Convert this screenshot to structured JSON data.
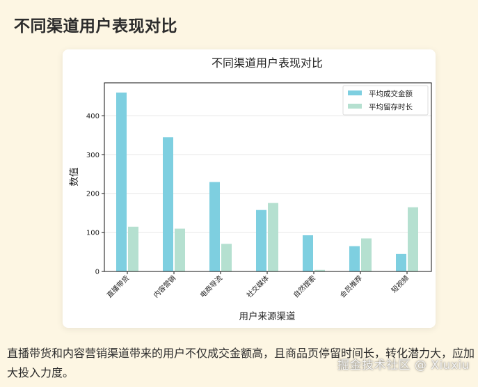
{
  "page": {
    "title": "不同渠道用户表现对比",
    "caption": "直播带货和内容营销渠道带来的用户不仅成交金额高，且商品页停留时间长，转化潜力大，应加大投入力度。",
    "watermark": "掘金技术社区 @ Xiuxiu"
  },
  "colors": {
    "series_amount": "#7ecfe0",
    "series_stay": "#b5e0d0",
    "page_bg": "#fdf6e3"
  },
  "chart_data": {
    "type": "bar",
    "title": "不同渠道用户表现对比",
    "xlabel": "用户来源渠道",
    "ylabel": "数值",
    "categories": [
      "直播带货",
      "内容营销",
      "电商导流",
      "社交媒体",
      "自然搜索",
      "会员推荐",
      "短视频"
    ],
    "series": [
      {
        "name": "平均成交金额",
        "values": [
          460,
          345,
          230,
          158,
          93,
          65,
          45
        ]
      },
      {
        "name": "平均留存时长",
        "values": [
          115,
          110,
          71,
          176,
          4,
          85,
          165
        ]
      }
    ],
    "yticks": [
      "0",
      "100",
      "200",
      "300",
      "400"
    ],
    "ylim": [
      0,
      485
    ],
    "grid": "y",
    "legend_position": "top-right"
  }
}
